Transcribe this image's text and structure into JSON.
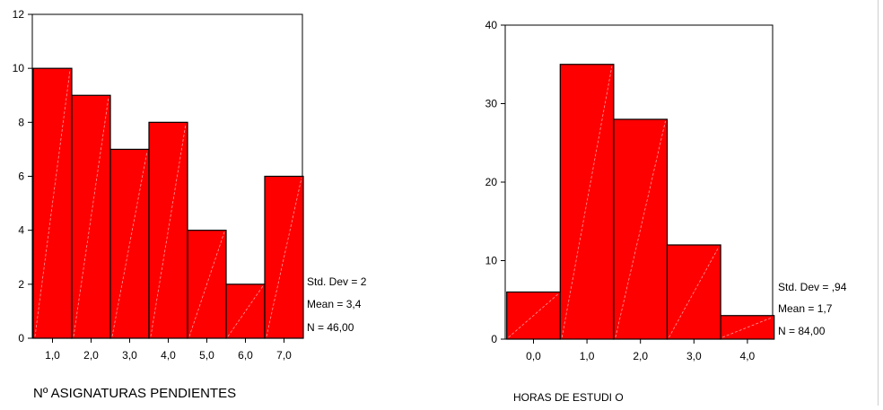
{
  "chart_data": [
    {
      "type": "bar",
      "categories": [
        "1,0",
        "2,0",
        "3,0",
        "4,0",
        "5,0",
        "6,0",
        "7,0"
      ],
      "values": [
        10,
        9,
        7,
        8,
        4,
        2,
        6
      ],
      "y_ticks": [
        "0",
        "2",
        "4",
        "6",
        "8",
        "10",
        "12"
      ],
      "ylim": [
        0,
        12
      ],
      "xlabel": "Nº ASIGNATURAS PENDIENTES",
      "stats": [
        "Std. Dev = 2",
        "Mean = 3,4",
        "N = 46,00"
      ],
      "bar_color": "#ff0000"
    },
    {
      "type": "bar",
      "categories": [
        "0,0",
        "1,0",
        "2,0",
        "3,0",
        "4,0"
      ],
      "values": [
        6,
        35,
        28,
        12,
        3
      ],
      "y_ticks": [
        "0",
        "10",
        "20",
        "30",
        "40"
      ],
      "ylim": [
        0,
        40
      ],
      "xlabel": "HORAS   DE  ESTUDI O",
      "stats": [
        "Std. Dev = ,94",
        "Mean = 1,7",
        "N = 84,00"
      ],
      "bar_color": "#ff0000"
    }
  ]
}
